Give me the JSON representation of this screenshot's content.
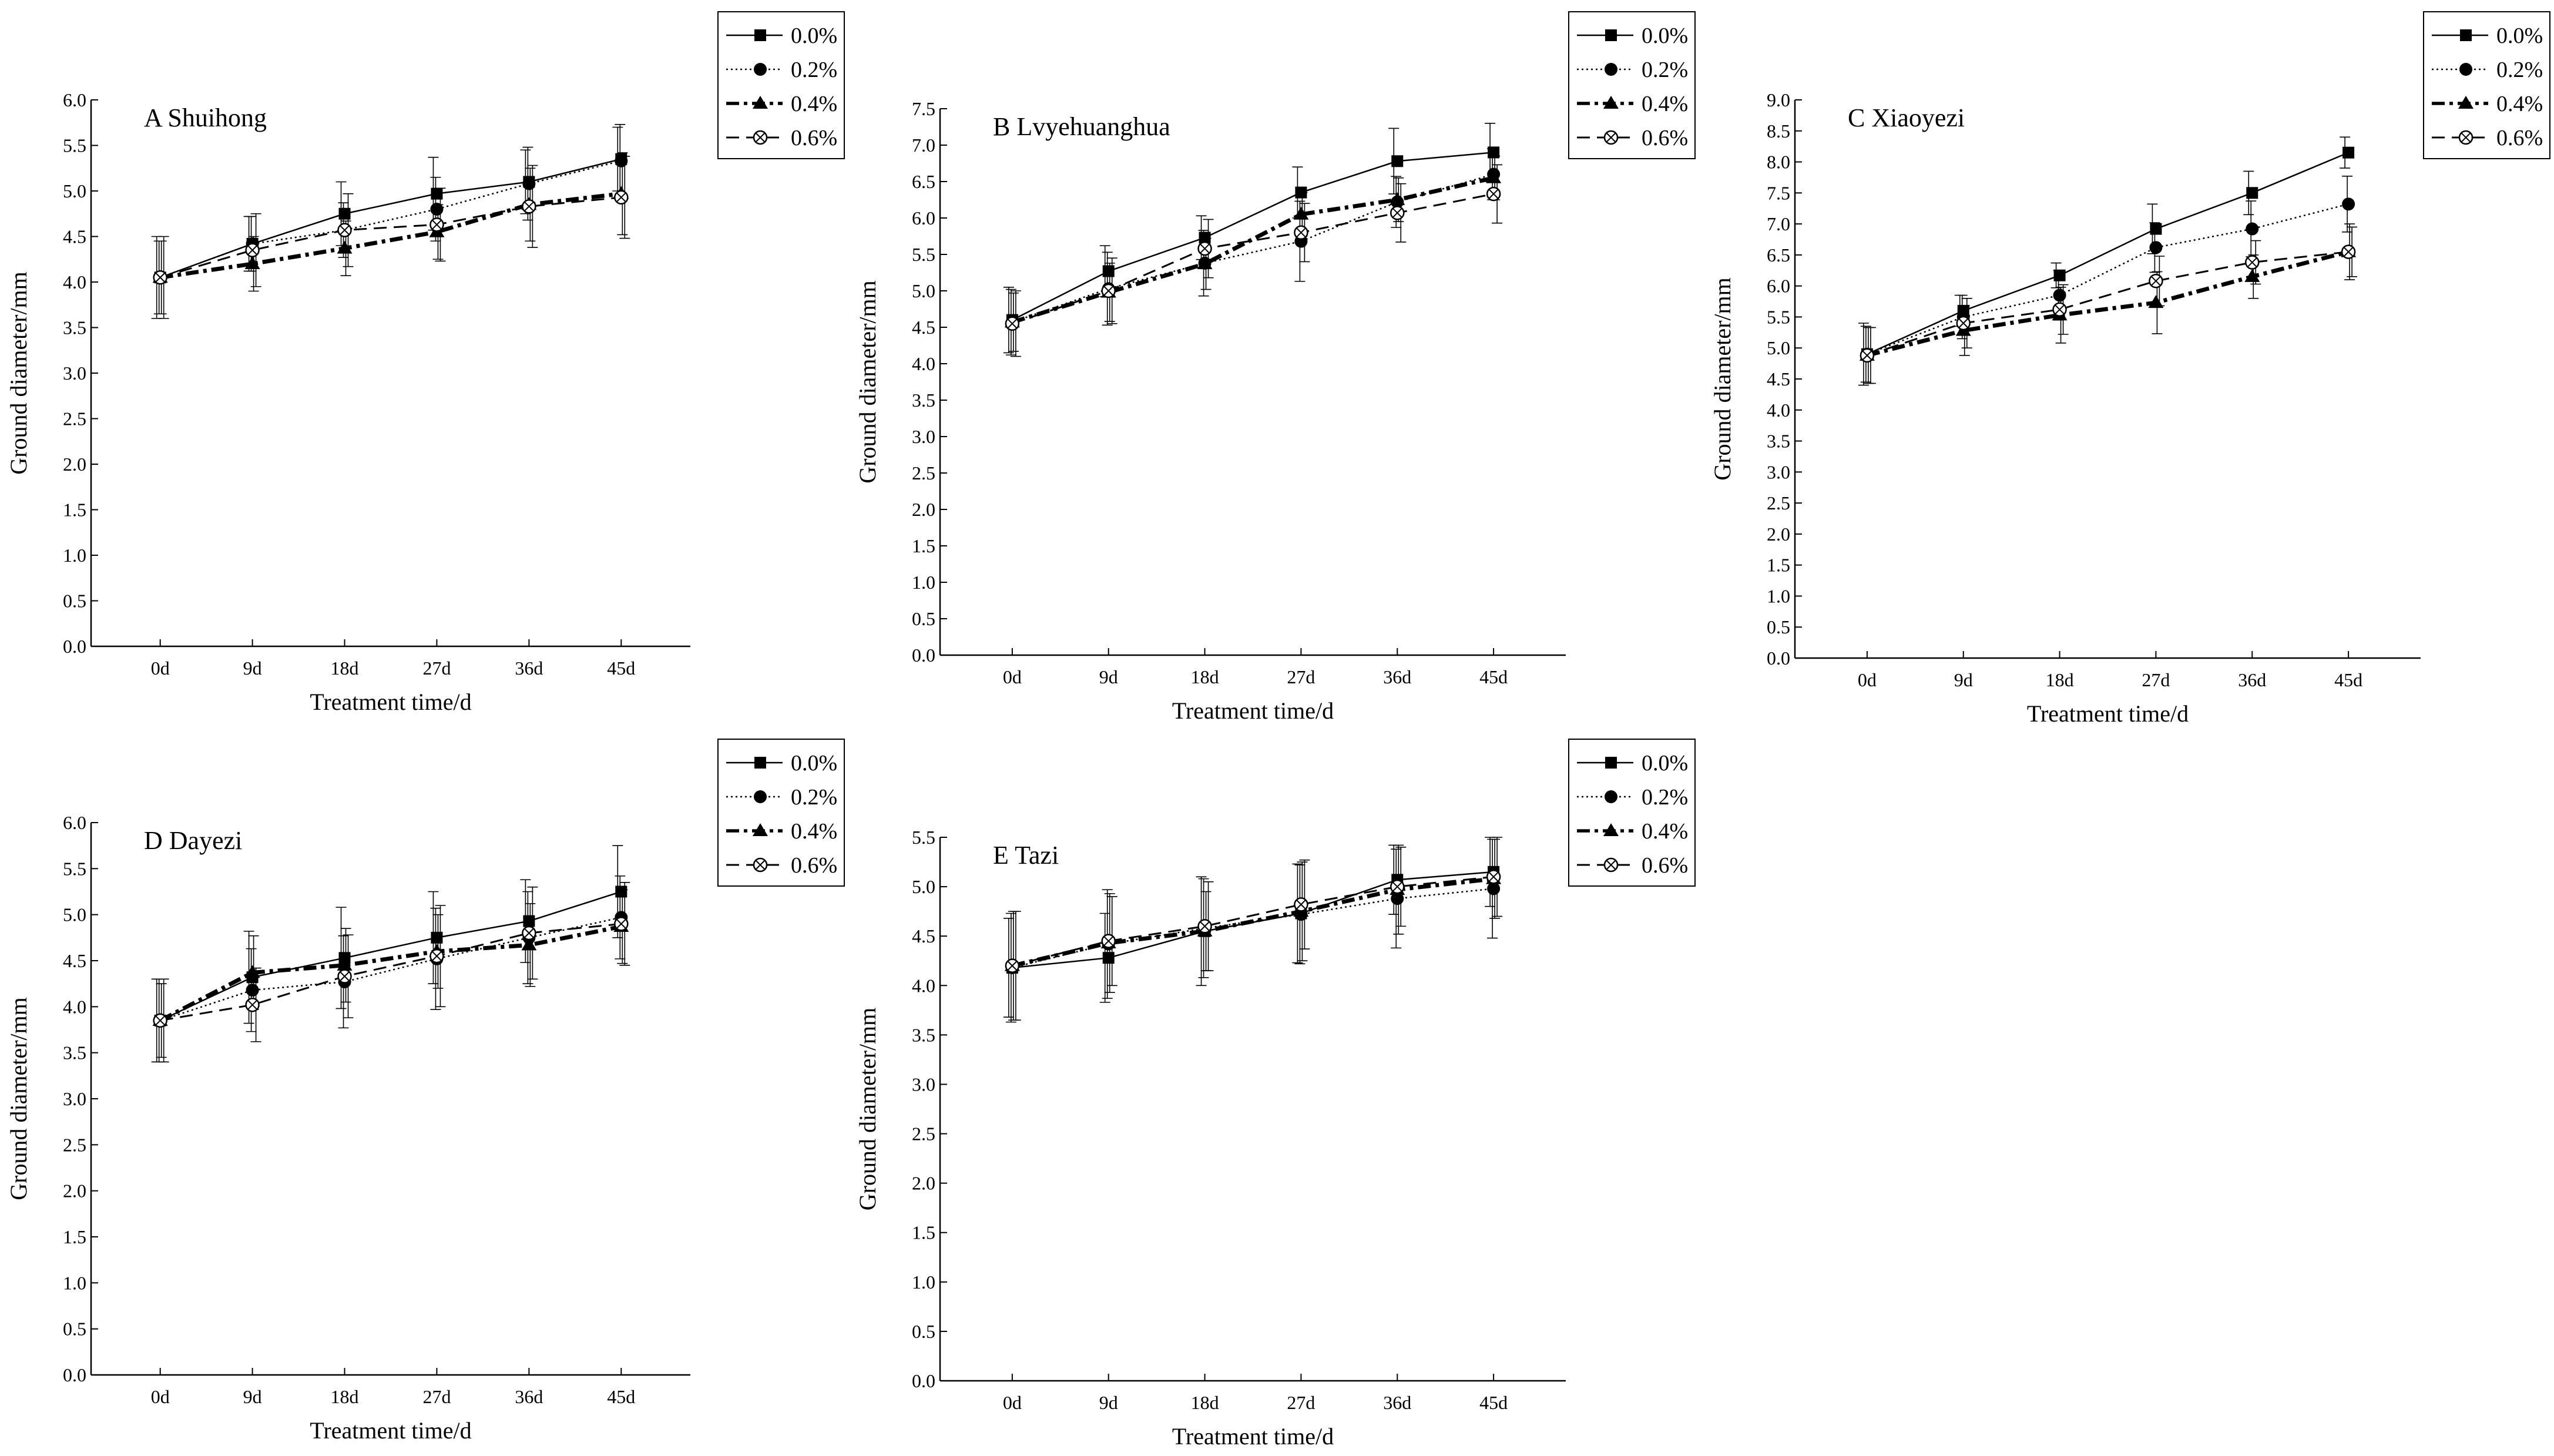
{
  "colors": {
    "line": "#000000",
    "background": "#ffffff"
  },
  "figure": {
    "legend_entries": [
      "0.0%",
      "0.2%",
      "0.4%",
      "0.6%"
    ],
    "x_axis_label": "Treatment time/d",
    "y_axis_label": "Ground diameter/mm"
  },
  "chart_data": [
    {
      "id": "A",
      "type": "line",
      "title": "A  Shuihong",
      "xlabel": "Treatment time/d",
      "ylabel": "Ground diameter/mm",
      "categories": [
        "0d",
        "9d",
        "18d",
        "27d",
        "36d",
        "45d"
      ],
      "ylim": [
        0,
        6
      ],
      "ystep": 0.5,
      "series": [
        {
          "name": "0.0%",
          "values": [
            4.05,
            4.42,
            4.75,
            4.97,
            5.1,
            5.35
          ],
          "errors": [
            0.45,
            0.3,
            0.35,
            0.4,
            0.35,
            0.35
          ]
        },
        {
          "name": "0.2%",
          "values": [
            4.05,
            4.42,
            4.57,
            4.8,
            5.08,
            5.33
          ],
          "errors": [
            0.4,
            0.3,
            0.3,
            0.35,
            0.4,
            0.4
          ]
        },
        {
          "name": "0.4%",
          "values": [
            4.05,
            4.2,
            4.37,
            4.55,
            4.85,
            4.97
          ],
          "errors": [
            0.4,
            0.3,
            0.3,
            0.3,
            0.4,
            0.45
          ]
        },
        {
          "name": "0.6%",
          "values": [
            4.05,
            4.35,
            4.57,
            4.63,
            4.83,
            4.93
          ],
          "errors": [
            0.45,
            0.4,
            0.4,
            0.4,
            0.45,
            0.45
          ]
        }
      ]
    },
    {
      "id": "B",
      "type": "line",
      "title": "B  Lvyehuanghua",
      "xlabel": "Treatment time/d",
      "ylabel": "Ground diameter/mm",
      "categories": [
        "0d",
        "9d",
        "18d",
        "27d",
        "36d",
        "45d"
      ],
      "ylim": [
        0,
        7.5
      ],
      "ystep": 0.5,
      "series": [
        {
          "name": "0.0%",
          "values": [
            4.6,
            5.27,
            5.73,
            6.35,
            6.78,
            6.9
          ],
          "errors": [
            0.45,
            0.35,
            0.3,
            0.35,
            0.45,
            0.4
          ]
        },
        {
          "name": "0.2%",
          "values": [
            4.57,
            5.03,
            5.38,
            5.68,
            6.22,
            6.6
          ],
          "errors": [
            0.45,
            0.5,
            0.45,
            0.55,
            0.35,
            0.35
          ]
        },
        {
          "name": "0.4%",
          "values": [
            4.57,
            4.98,
            5.37,
            6.05,
            6.25,
            6.55
          ],
          "errors": [
            0.4,
            0.4,
            0.35,
            0.3,
            0.3,
            0.3
          ]
        },
        {
          "name": "0.6%",
          "values": [
            4.55,
            5.0,
            5.58,
            5.8,
            6.07,
            6.33
          ],
          "errors": [
            0.45,
            0.45,
            0.4,
            0.4,
            0.4,
            0.4
          ]
        }
      ]
    },
    {
      "id": "C",
      "type": "line",
      "title": "C  Xiaoyezi",
      "xlabel": "Treatment time/d",
      "ylabel": "Ground diameter/mm",
      "categories": [
        "0d",
        "9d",
        "18d",
        "27d",
        "36d",
        "45d"
      ],
      "ylim": [
        0,
        9
      ],
      "ystep": 0.5,
      "series": [
        {
          "name": "0.0%",
          "values": [
            4.9,
            5.6,
            6.17,
            6.92,
            7.5,
            8.15
          ],
          "errors": [
            0.5,
            0.25,
            0.2,
            0.4,
            0.35,
            0.25
          ]
        },
        {
          "name": "0.2%",
          "values": [
            4.9,
            5.5,
            5.85,
            6.62,
            6.92,
            7.32
          ],
          "errors": [
            0.45,
            0.35,
            0.4,
            0.4,
            0.45,
            0.45
          ]
        },
        {
          "name": "0.4%",
          "values": [
            4.88,
            5.28,
            5.53,
            5.73,
            6.15,
            6.55
          ],
          "errors": [
            0.45,
            0.4,
            0.45,
            0.5,
            0.35,
            0.45
          ]
        },
        {
          "name": "0.6%",
          "values": [
            4.88,
            5.4,
            5.62,
            6.08,
            6.38,
            6.55
          ],
          "errors": [
            0.45,
            0.4,
            0.4,
            0.4,
            0.35,
            0.4
          ]
        }
      ]
    },
    {
      "id": "D",
      "type": "line",
      "title": "D  Dayezi",
      "xlabel": "Treatment time/d",
      "ylabel": "Ground diameter/mm",
      "categories": [
        "0d",
        "9d",
        "18d",
        "27d",
        "36d",
        "45d"
      ],
      "ylim": [
        0,
        6
      ],
      "ystep": 0.5,
      "series": [
        {
          "name": "0.0%",
          "values": [
            3.85,
            4.32,
            4.53,
            4.75,
            4.93,
            5.25
          ],
          "errors": [
            0.45,
            0.5,
            0.55,
            0.5,
            0.45,
            0.5
          ]
        },
        {
          "name": "0.2%",
          "values": [
            3.85,
            4.18,
            4.27,
            4.52,
            4.75,
            4.97
          ],
          "errors": [
            0.45,
            0.45,
            0.5,
            0.55,
            0.5,
            0.45
          ]
        },
        {
          "name": "0.4%",
          "values": [
            3.85,
            4.37,
            4.45,
            4.6,
            4.67,
            4.87
          ],
          "errors": [
            0.4,
            0.4,
            0.4,
            0.4,
            0.45,
            0.4
          ]
        },
        {
          "name": "0.6%",
          "values": [
            3.85,
            4.02,
            4.33,
            4.55,
            4.8,
            4.9
          ],
          "errors": [
            0.45,
            0.4,
            0.45,
            0.55,
            0.5,
            0.45
          ]
        }
      ]
    },
    {
      "id": "E",
      "type": "line",
      "title": "E  Tazi",
      "xlabel": "Treatment time/d",
      "ylabel": "Ground diameter/mm",
      "categories": [
        "0d",
        "9d",
        "18d",
        "27d",
        "36d",
        "45d"
      ],
      "ylim": [
        0,
        5.5
      ],
      "ystep": 0.5,
      "series": [
        {
          "name": "0.0%",
          "values": [
            4.18,
            4.28,
            4.55,
            4.73,
            5.07,
            5.15
          ],
          "errors": [
            0.5,
            0.45,
            0.55,
            0.5,
            0.35,
            0.35
          ]
        },
        {
          "name": "0.2%",
          "values": [
            4.18,
            4.42,
            4.58,
            4.72,
            4.88,
            4.98
          ],
          "errors": [
            0.55,
            0.55,
            0.5,
            0.5,
            0.5,
            0.5
          ]
        },
        {
          "name": "0.4%",
          "values": [
            4.2,
            4.43,
            4.55,
            4.75,
            4.97,
            5.08
          ],
          "errors": [
            0.55,
            0.5,
            0.4,
            0.5,
            0.45,
            0.4
          ]
        },
        {
          "name": "0.6%",
          "values": [
            4.2,
            4.45,
            4.6,
            4.82,
            5.0,
            5.1
          ],
          "errors": [
            0.55,
            0.45,
            0.45,
            0.45,
            0.4,
            0.4
          ]
        }
      ]
    }
  ]
}
